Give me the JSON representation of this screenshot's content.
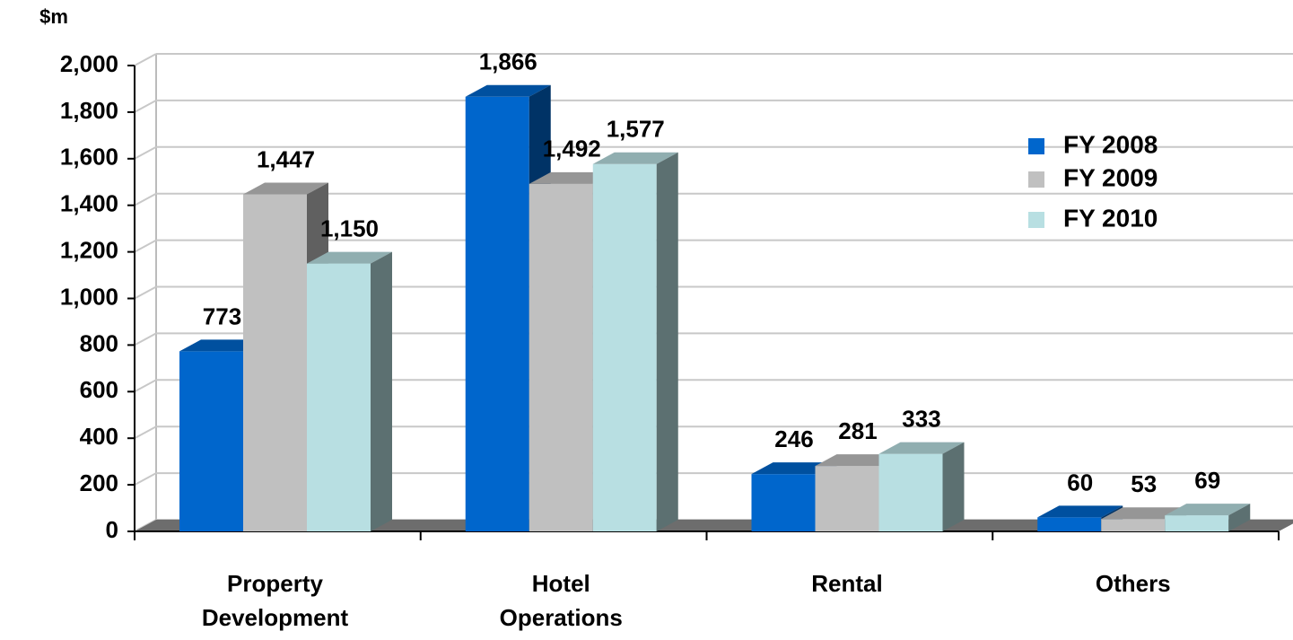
{
  "chart_data": {
    "type": "bar3d",
    "y_unit_label": "$m",
    "categories": [
      "Property Development",
      "Hotel Operations",
      "Rental",
      "Others"
    ],
    "series": [
      {
        "name": "FY 2008",
        "color": "#0066cc",
        "values": [
          773,
          1866,
          246,
          60
        ],
        "value_labels": [
          "773",
          "1,866",
          "246",
          "60"
        ]
      },
      {
        "name": "FY 2009",
        "color": "#c0c0c0",
        "values": [
          1447,
          1492,
          281,
          53
        ],
        "value_labels": [
          "1,447",
          "1,492",
          "281",
          "53"
        ]
      },
      {
        "name": "FY 2010",
        "color": "#b8dfe2",
        "values": [
          1150,
          1577,
          333,
          69
        ],
        "value_labels": [
          "1,150",
          "1,577",
          "333",
          "69"
        ]
      }
    ],
    "ylim": [
      0,
      2000
    ],
    "yticks": [
      0,
      200,
      400,
      600,
      800,
      {
        "value": 1000,
        "label": "1,000"
      },
      {
        "value": 1200,
        "label": "1,200"
      },
      {
        "value": 1400,
        "label": "1,400"
      },
      {
        "value": 1600,
        "label": "1,600"
      },
      {
        "value": 1800,
        "label": "1,800"
      },
      {
        "value": 2000,
        "label": "2,000"
      }
    ],
    "grid": true
  }
}
